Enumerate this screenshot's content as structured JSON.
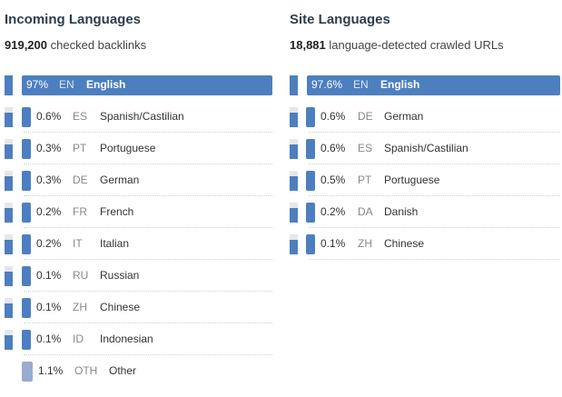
{
  "incoming": {
    "title": "Incoming Languages",
    "count": "919,200",
    "count_suffix": "checked backlinks",
    "rows": [
      {
        "pct": "97%",
        "code": "EN",
        "name": "English",
        "value": 0.97
      },
      {
        "pct": "0.6%",
        "code": "ES",
        "name": "Spanish/Castilian",
        "value": 0.006
      },
      {
        "pct": "0.3%",
        "code": "PT",
        "name": "Portuguese",
        "value": 0.003
      },
      {
        "pct": "0.3%",
        "code": "DE",
        "name": "German",
        "value": 0.003
      },
      {
        "pct": "0.2%",
        "code": "FR",
        "name": "French",
        "value": 0.002
      },
      {
        "pct": "0.2%",
        "code": "IT",
        "name": "Italian",
        "value": 0.002
      },
      {
        "pct": "0.1%",
        "code": "RU",
        "name": "Russian",
        "value": 0.001
      },
      {
        "pct": "0.1%",
        "code": "ZH",
        "name": "Chinese",
        "value": 0.001
      },
      {
        "pct": "0.1%",
        "code": "ID",
        "name": "Indonesian",
        "value": 0.001
      },
      {
        "pct": "1.1%",
        "code": "OTH",
        "name": "Other",
        "value": 0.011
      }
    ]
  },
  "site": {
    "title": "Site Languages",
    "count": "18,881",
    "count_suffix": "language-detected crawled URLs",
    "rows": [
      {
        "pct": "97.6%",
        "code": "EN",
        "name": "English",
        "value": 0.976
      },
      {
        "pct": "0.6%",
        "code": "DE",
        "name": "German",
        "value": 0.006
      },
      {
        "pct": "0.6%",
        "code": "ES",
        "name": "Spanish/Castilian",
        "value": 0.006
      },
      {
        "pct": "0.5%",
        "code": "PT",
        "name": "Portuguese",
        "value": 0.005
      },
      {
        "pct": "0.2%",
        "code": "DA",
        "name": "Danish",
        "value": 0.002
      },
      {
        "pct": "0.1%",
        "code": "ZH",
        "name": "Chinese",
        "value": 0.001
      }
    ]
  },
  "colors": {
    "bar": "#4d7fbf",
    "other": "#98acd0",
    "gauge_bg": "#e4e7eb"
  }
}
